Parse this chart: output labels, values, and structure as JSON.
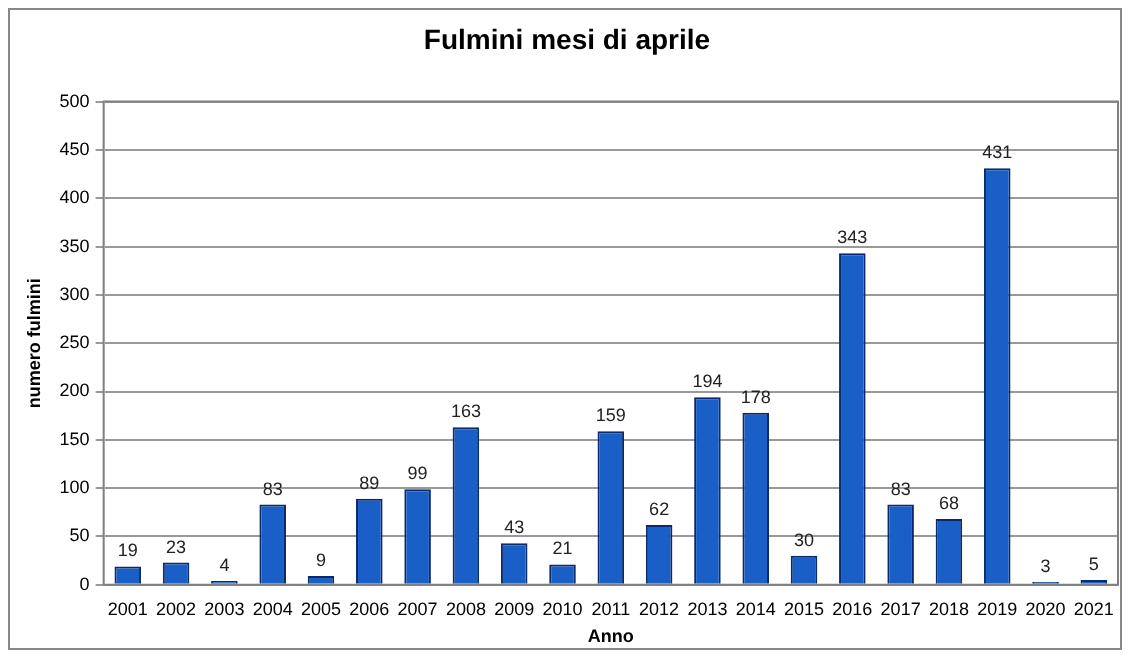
{
  "chart_data": {
    "type": "bar",
    "title": "Fulmini mesi di aprile",
    "xlabel": "Anno",
    "ylabel": "numero fulmini",
    "categories": [
      "2001",
      "2002",
      "2003",
      "2004",
      "2005",
      "2006",
      "2007",
      "2008",
      "2009",
      "2010",
      "2011",
      "2012",
      "2013",
      "2014",
      "2015",
      "2016",
      "2017",
      "2018",
      "2019",
      "2020",
      "2021"
    ],
    "values": [
      19,
      23,
      4,
      83,
      9,
      89,
      99,
      163,
      43,
      21,
      159,
      62,
      194,
      178,
      30,
      343,
      83,
      68,
      431,
      3,
      5
    ],
    "color": "#1a5fc8",
    "ylim": [
      0,
      500
    ],
    "yticks": [
      0,
      50,
      100,
      150,
      200,
      250,
      300,
      350,
      400,
      450,
      500
    ],
    "grid": "y",
    "data_labels": true,
    "legend": false
  }
}
